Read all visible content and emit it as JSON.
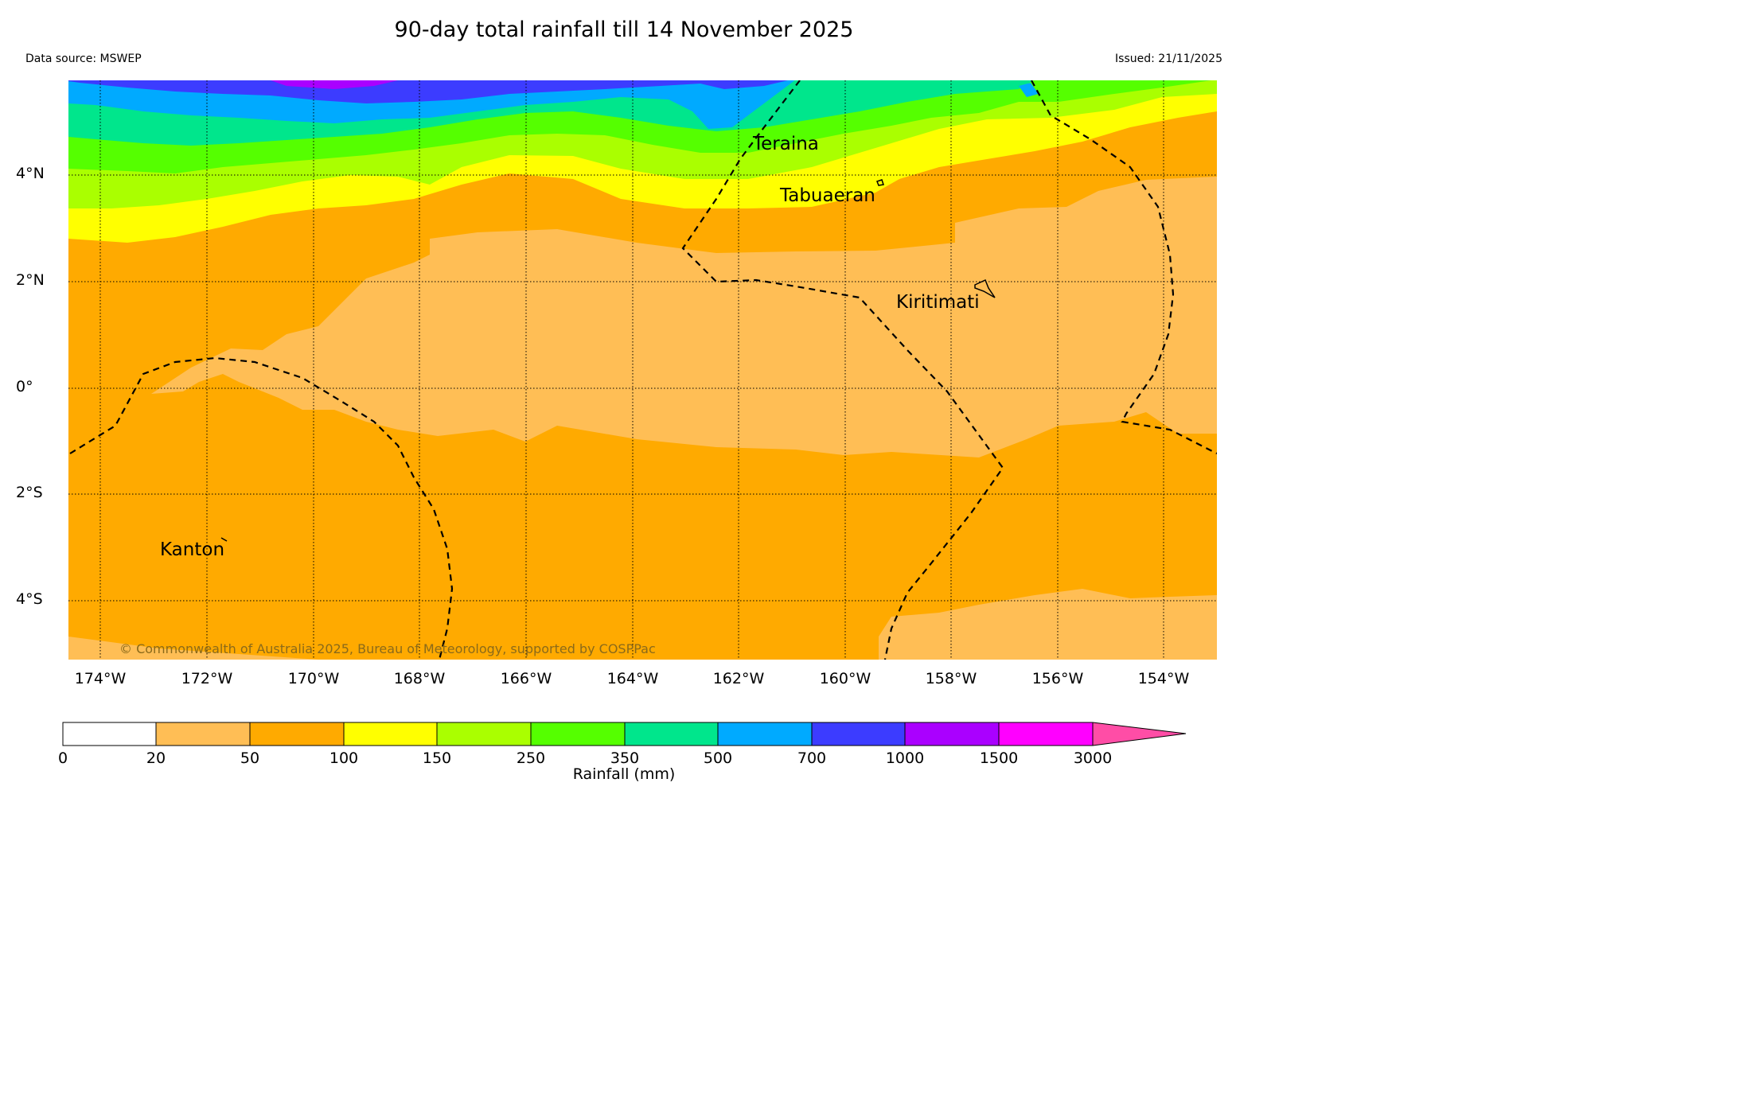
{
  "header": {
    "title": "90-day total rainfall till 14 November 2025",
    "data_source": "Data source: MSWEP",
    "issued": "Issued: 21/11/2025"
  },
  "map": {
    "lat_labels": [
      "4°N",
      "2°N",
      "0°",
      "2°S",
      "4°S"
    ],
    "lon_labels": [
      "174°W",
      "172°W",
      "170°W",
      "168°W",
      "166°W",
      "164°W",
      "162°W",
      "160°W",
      "158°W",
      "156°W",
      "154°W"
    ],
    "places": {
      "teraina": "Teraina",
      "tabuaeran": "Tabuaeran",
      "kiritimati": "Kiritimati",
      "kanton": "Kanton"
    },
    "copyright": "© Commonwealth of Australia 2025, Bureau of Meteorology, supported by COSPPac",
    "colors": {
      "r0_20": "#ffffff",
      "r20_50": "#ffbe55",
      "r50_100": "#ffaa00",
      "r100_150": "#ffff00",
      "r150_250": "#aaff00",
      "r250_350": "#55ff00",
      "r350_500": "#00e68c",
      "r500_700": "#00aaff",
      "r700_1000": "#3c3cff",
      "r1000_1500": "#aa00ff",
      "r1500_3000": "#ff00ff",
      "r3000_plus": "#ff4da6"
    }
  },
  "colorbar": {
    "ticks": [
      "0",
      "20",
      "50",
      "100",
      "150",
      "250",
      "350",
      "500",
      "700",
      "1000",
      "1500",
      "3000"
    ],
    "label": "Rainfall (mm)"
  }
}
